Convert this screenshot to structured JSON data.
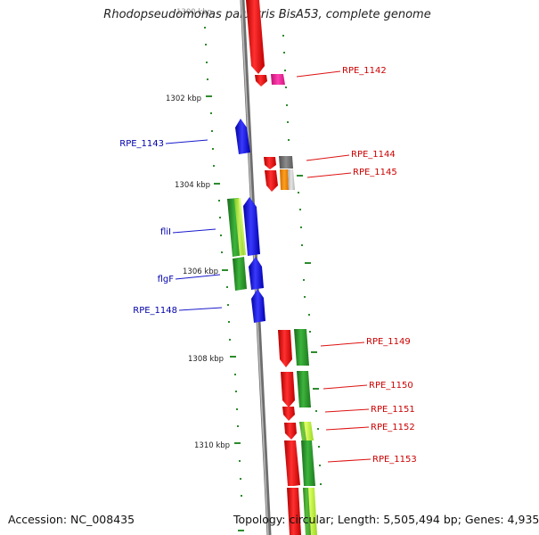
{
  "title": "Rhodopseudomonas palustris BisA53, complete genome",
  "accession_text": "Accession: NC_008435",
  "topology_text": "Topology: circular; Length: 5,505,494 bp; Genes: 4,935",
  "colors": {
    "tick": "#2e8b2e",
    "axis": "#8a8a8a",
    "red": "#ff1a1a",
    "blue": "#1a1aff",
    "green": "#2ea02e",
    "lightgreen": "#c8ff3c",
    "magenta": "#ff2aa0",
    "gray": "#777777",
    "orange": "#ff8c00",
    "lightgray": "#c8c8c8",
    "label_red": "#cc0000",
    "label_blue": "#0000aa"
  },
  "scale_labels": [
    "1300 kbp",
    "1302 kbp",
    "1304 kbp",
    "1306 kbp",
    "1308 kbp",
    "1310 kbp"
  ],
  "left_genes": [
    {
      "name": "RPE_1143"
    },
    {
      "name": "fliI"
    },
    {
      "name": "flgF"
    },
    {
      "name": "RPE_1148"
    }
  ],
  "right_genes": [
    {
      "name": "RPE_1142"
    },
    {
      "name": "RPE_1144"
    },
    {
      "name": "RPE_1145"
    },
    {
      "name": "RPE_1149"
    },
    {
      "name": "RPE_1150"
    },
    {
      "name": "RPE_1151"
    },
    {
      "name": "RPE_1152"
    },
    {
      "name": "RPE_1153"
    }
  ]
}
